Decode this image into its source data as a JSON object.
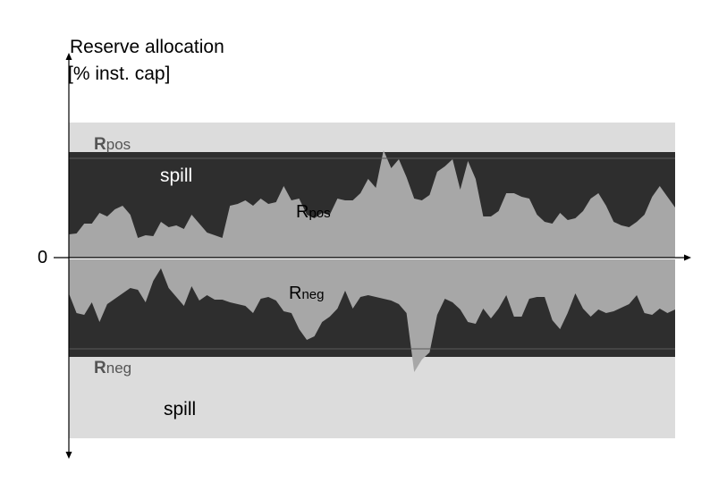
{
  "y_axis": {
    "label_line1": "Reserve allocation",
    "label_line2": "[% inst. cap]"
  },
  "x_axis": {
    "zero_label": "0"
  },
  "labels": {
    "rpos_top": {
      "main": "R",
      "sub": "pos"
    },
    "spill_top": "spill",
    "rpos_mid": {
      "main": "R",
      "sub": "pos"
    },
    "rneg_mid": {
      "main": "R",
      "sub": "neg"
    },
    "rneg_bottom": {
      "main": "R",
      "sub": "neg"
    },
    "spill_bottom": "spill"
  },
  "colors": {
    "light_band": "#dcdcdc",
    "dark_band": "#2e2e2e",
    "area_fill": "#a7a7a7",
    "axis": "#000000"
  },
  "series": {
    "t": [
      0,
      1,
      2,
      3,
      4,
      5,
      6,
      7,
      8,
      9,
      10,
      11,
      12,
      13,
      14,
      15,
      16,
      17,
      18,
      19,
      20,
      21,
      22,
      23,
      24,
      25,
      26,
      27,
      28,
      29,
      30,
      31,
      32,
      33,
      34,
      35,
      36,
      37,
      38,
      39,
      40,
      41,
      42,
      43,
      44,
      45,
      46,
      47,
      48,
      49,
      50,
      51,
      52,
      53,
      54,
      55,
      56,
      57,
      58,
      59,
      60,
      61,
      62,
      63,
      64,
      65,
      66,
      67,
      68,
      69,
      70,
      71,
      72,
      73,
      74,
      75,
      76,
      77,
      78,
      79
    ],
    "positive": [
      26,
      27,
      38,
      38,
      50,
      46,
      54,
      58,
      48,
      22,
      25,
      24,
      40,
      34,
      36,
      32,
      48,
      38,
      28,
      25,
      22,
      58,
      60,
      64,
      58,
      66,
      60,
      62,
      80,
      64,
      66,
      48,
      44,
      50,
      48,
      66,
      64,
      64,
      72,
      88,
      78,
      120,
      100,
      110,
      90,
      66,
      64,
      70,
      96,
      102,
      110,
      76,
      108,
      88,
      46,
      46,
      52,
      72,
      72,
      68,
      66,
      48,
      40,
      38,
      50,
      42,
      44,
      52,
      66,
      72,
      58,
      40,
      36,
      34,
      40,
      48,
      68,
      80,
      68,
      56
    ],
    "negative": [
      -38,
      -60,
      -62,
      -48,
      -70,
      -50,
      -44,
      -38,
      -32,
      -34,
      -48,
      -24,
      -10,
      -32,
      -42,
      -52,
      -30,
      -46,
      -40,
      -45,
      -45,
      -48,
      -50,
      -52,
      -60,
      -44,
      -42,
      -46,
      -58,
      -60,
      -78,
      -90,
      -86,
      -70,
      -64,
      -55,
      -35,
      -55,
      -42,
      -40,
      -42,
      -44,
      -46,
      -50,
      -60,
      -126,
      -112,
      -104,
      -62,
      -44,
      -48,
      -56,
      -70,
      -72,
      -55,
      -66,
      -55,
      -40,
      -64,
      -64,
      -44,
      -42,
      -42,
      -68,
      -78,
      -60,
      -38,
      -55,
      -64,
      -56,
      -60,
      -58,
      -54,
      -50,
      -40,
      -60,
      -62,
      -55,
      -60,
      -56
    ]
  }
}
